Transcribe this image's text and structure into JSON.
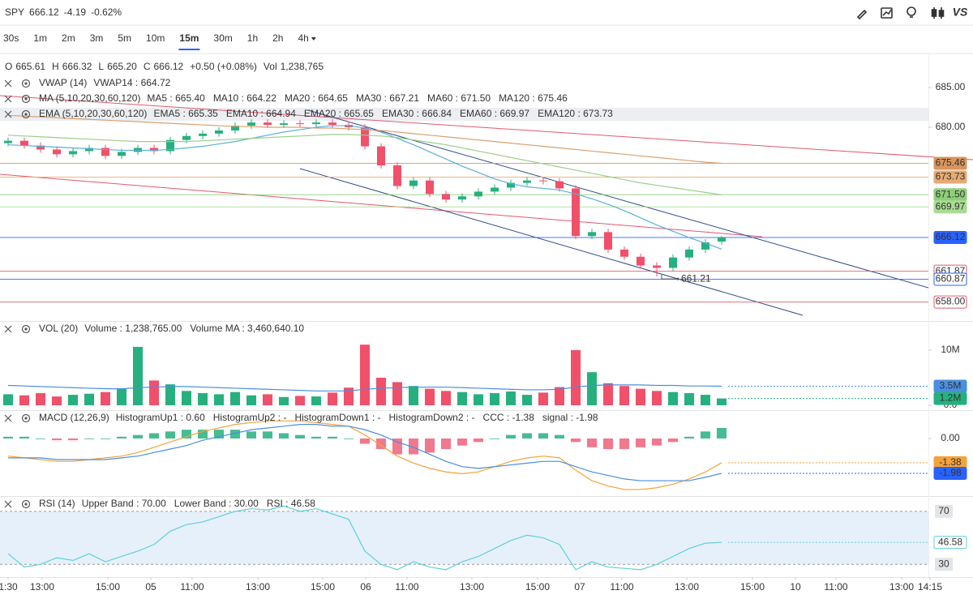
{
  "header": {
    "symbol": "SPY",
    "price": "666.12",
    "change": "-4.19",
    "change_pct": "-0.62%",
    "color": "#e04a5a",
    "vs_label": "VS"
  },
  "timeframes": [
    "30s",
    "1m",
    "2m",
    "3m",
    "5m",
    "10m",
    "15m",
    "30m",
    "1h",
    "2h",
    "4h"
  ],
  "active_timeframe": "15m",
  "ohlc": {
    "items": [
      {
        "label": "O",
        "value": "665.61",
        "color": "#e04a5a"
      },
      {
        "label": "H",
        "value": "666.32",
        "color": "#22a884"
      },
      {
        "label": "L",
        "value": "665.20",
        "color": "#e04a5a"
      },
      {
        "label": "C",
        "value": "666.12",
        "color": "#22a884"
      }
    ],
    "change": "+0.50 (+0.08%)",
    "change_color": "#22a884",
    "vol_label": "Vol",
    "vol_value": "1,238,765",
    "vol_color": "#22a884"
  },
  "chart_data": [
    {
      "type": "candlestick",
      "open": [
        678.0,
        678.3,
        677.7,
        677.2,
        676.6,
        677.0,
        677.4,
        676.4,
        676.9,
        677.4,
        677.0,
        678.4,
        678.9,
        679.2,
        679.6,
        680.2,
        680.6,
        680.3,
        680.5,
        680.4,
        680.6,
        680.3,
        680.0,
        677.6,
        675.2,
        672.6,
        673.3,
        671.6,
        670.9,
        671.3,
        671.9,
        672.4,
        673.0,
        673.3,
        673.2,
        672.3,
        666.3,
        666.8,
        664.6,
        663.7,
        662.6,
        662.3,
        663.6,
        664.6,
        665.61
      ],
      "high": [
        678.7,
        678.7,
        678.1,
        677.6,
        677.4,
        677.8,
        677.8,
        677.3,
        677.8,
        677.8,
        678.8,
        679.3,
        679.6,
        680.0,
        680.6,
        681.0,
        681.0,
        680.9,
        680.9,
        681.0,
        681.0,
        680.7,
        680.4,
        678.0,
        675.6,
        673.7,
        673.7,
        672.0,
        671.7,
        672.3,
        672.8,
        673.4,
        673.7,
        673.7,
        673.6,
        672.7,
        667.2,
        667.2,
        665.0,
        664.1,
        663.0,
        664.0,
        665.0,
        665.9,
        666.32
      ],
      "low": [
        677.6,
        677.3,
        676.8,
        676.2,
        676.2,
        676.6,
        676.0,
        676.0,
        676.5,
        676.6,
        676.6,
        678.0,
        678.5,
        678.8,
        679.2,
        679.8,
        679.9,
        679.9,
        680.0,
        680.0,
        679.9,
        679.6,
        677.2,
        674.8,
        672.2,
        672.2,
        671.2,
        670.5,
        670.5,
        670.9,
        671.5,
        672.0,
        672.6,
        672.8,
        671.9,
        665.9,
        665.9,
        664.2,
        663.3,
        662.2,
        661.21,
        661.9,
        663.2,
        664.2,
        665.2
      ],
      "close": [
        678.3,
        677.7,
        677.2,
        676.6,
        677.0,
        677.4,
        676.4,
        676.9,
        677.4,
        677.0,
        678.4,
        678.9,
        679.2,
        679.6,
        680.2,
        680.6,
        680.3,
        680.5,
        680.4,
        680.6,
        680.3,
        680.0,
        677.6,
        675.2,
        672.6,
        673.3,
        671.6,
        670.9,
        671.3,
        671.9,
        672.4,
        673.0,
        673.3,
        673.2,
        672.3,
        666.3,
        666.8,
        664.6,
        663.7,
        662.6,
        662.3,
        663.6,
        664.6,
        665.5,
        666.12
      ],
      "up_color": "#26b07e",
      "down_color": "#f0506a",
      "series": [
        {
          "color": "#5ab0d8",
          "values": [
            677.8,
            677.7,
            677.6,
            677.5,
            677.4,
            677.3,
            677.2,
            677.1,
            677.1,
            677.1,
            677.2,
            677.4,
            677.6,
            677.9,
            678.2,
            678.6,
            679.0,
            679.4,
            679.7,
            680.0,
            680.2,
            680.2,
            679.9,
            679.4,
            678.6,
            677.8,
            676.9,
            676.0,
            675.1,
            674.3,
            673.5,
            672.9,
            672.5,
            672.3,
            672.1,
            671.6,
            671.0,
            670.3,
            669.5,
            668.6,
            667.7,
            666.9,
            666.1,
            665.4,
            664.65
          ]
        },
        {
          "color": "#9ccf8a",
          "values": [
            679.0,
            678.9,
            678.8,
            678.7,
            678.6,
            678.5,
            678.4,
            678.3,
            678.2,
            678.2,
            678.2,
            678.2,
            678.3,
            678.4,
            678.5,
            678.6,
            678.7,
            678.8,
            678.9,
            679.0,
            679.1,
            679.1,
            679.0,
            678.9,
            678.7,
            678.4,
            678.1,
            677.8,
            677.4,
            677.0,
            676.6,
            676.2,
            675.8,
            675.4,
            675.0,
            674.6,
            674.2,
            673.8,
            673.4,
            673.0,
            672.7,
            672.4,
            672.1,
            671.8,
            671.5
          ]
        },
        {
          "color": "#d9a070",
          "values": [
            681.5,
            681.4,
            681.3,
            681.2,
            681.1,
            681.0,
            680.9,
            680.8,
            680.7,
            680.6,
            680.5,
            680.4,
            680.3,
            680.2,
            680.1,
            680.1,
            680.0,
            680.0,
            680.0,
            679.9,
            679.9,
            679.8,
            679.7,
            679.6,
            679.4,
            679.2,
            679.0,
            678.8,
            678.6,
            678.4,
            678.2,
            678.0,
            677.8,
            677.6,
            677.4,
            677.2,
            677.0,
            676.8,
            676.6,
            676.4,
            676.2,
            676.0,
            675.8,
            675.6,
            675.46
          ]
        }
      ],
      "ylim": [
        655.71,
        686.33
      ],
      "yticks": [
        {
          "value": 685,
          "label": "685.00"
        },
        {
          "value": 680,
          "label": "680.00"
        }
      ],
      "tag_lines": "full",
      "tags": [
        {
          "value": 675.46,
          "label": "675.46",
          "color": "#d9955e",
          "style": "filled"
        },
        {
          "value": 673.73,
          "label": "673.73",
          "color": "#e6ab72",
          "style": "filled"
        },
        {
          "value": 671.5,
          "label": "671.50",
          "color": "#8fcf7a",
          "style": "filled"
        },
        {
          "value": 669.97,
          "label": "669.97",
          "color": "#a8dc92",
          "style": "filled"
        },
        {
          "value": 666.12,
          "label": "666.12",
          "color": "#2962ff",
          "style": "filled"
        },
        {
          "value": 661.87,
          "label": "661.87",
          "color": "#e05a6a",
          "style": "outline"
        },
        {
          "value": 660.87,
          "label": "660.87",
          "color": "#2962ff",
          "style": "outline"
        },
        {
          "value": 658.0,
          "label": "658.00",
          "color": "#e05a6a",
          "style": "outline"
        }
      ],
      "annotation": "661.21",
      "legends": [
        {
          "name": "VWAP (14)",
          "items": [
            {
              "text": "VWAP14 : 664.72",
              "color": "#f0a030"
            }
          ]
        },
        {
          "name": "MA (5,10,20,30,60,120)",
          "items": [
            {
              "text": "MA5 : 665.40",
              "color": "#4a8fe0"
            },
            {
              "text": "MA10 : 664.22",
              "color": "#e0603a"
            },
            {
              "text": "MA20 : 664.65",
              "color": "#5ab0d8"
            },
            {
              "text": "MA30 : 667.21",
              "color": "#4a70d0"
            },
            {
              "text": "MA60 : 671.50",
              "color": "#8cc97a"
            },
            {
              "text": "MA120 : 675.46",
              "color": "#d9955e"
            }
          ]
        },
        {
          "name": "EMA (5,10,20,30,60,120)",
          "items": [
            {
              "text": "EMA5 : 665.35",
              "color": "#4a8fe0"
            },
            {
              "text": "EMA10 : 664.94",
              "color": "#e0603a"
            },
            {
              "text": "EMA20 : 665.65",
              "color": "#5ab0d8"
            },
            {
              "text": "EMA30 : 666.84",
              "color": "#4a70d0"
            },
            {
              "text": "EMA60 : 669.97",
              "color": "#8cc97a"
            },
            {
              "text": "EMA120 : 673.73",
              "color": "#d9955e"
            }
          ]
        }
      ]
    },
    {
      "type": "bar",
      "values": [
        2.0,
        1.8,
        2.2,
        1.6,
        1.9,
        2.1,
        2.4,
        3.0,
        10.6,
        4.5,
        3.8,
        2.6,
        2.2,
        2.0,
        2.4,
        1.8,
        2.0,
        1.5,
        1.7,
        1.6,
        2.3,
        3.2,
        11.0,
        5.0,
        4.2,
        3.5,
        3.0,
        2.6,
        2.4,
        2.0,
        2.2,
        2.5,
        1.9,
        2.3,
        3.3,
        10.0,
        6.0,
        4.0,
        3.5,
        3.0,
        2.6,
        2.4,
        2.2,
        1.9,
        1.238765
      ],
      "series": [
        {
          "color": "#4a8fe0",
          "values": [
            3.6,
            3.5,
            3.4,
            3.3,
            3.2,
            3.1,
            3.0,
            3.0,
            3.2,
            3.3,
            3.4,
            3.4,
            3.3,
            3.2,
            3.1,
            3.0,
            2.9,
            2.8,
            2.7,
            2.6,
            2.6,
            2.6,
            2.9,
            3.1,
            3.2,
            3.3,
            3.3,
            3.3,
            3.2,
            3.1,
            3.0,
            2.9,
            2.8,
            2.8,
            2.9,
            3.3,
            3.6,
            3.7,
            3.7,
            3.7,
            3.6,
            3.6,
            3.5,
            3.5,
            3.4606401
          ]
        }
      ],
      "ylim": [
        0,
        15
      ],
      "yticks": [
        {
          "value": 10,
          "label": "10M"
        },
        {
          "value": 0,
          "label": "0.0"
        }
      ],
      "tag_lines": "dotted",
      "tags": [
        {
          "value": 3.4606401,
          "label": "3.5M",
          "color": "#4a8fe0",
          "style": "filled"
        },
        {
          "value": 1.238765,
          "label": "1.2M",
          "color": "#26b07e",
          "style": "filled"
        }
      ],
      "legends": [
        {
          "name": "VOL (20)",
          "items": [
            {
              "text": "Volume : 1,238,765.00",
              "color": "#26b07e"
            },
            {
              "text": "Volume MA : 3,460,640.10",
              "color": "#4a8fe0"
            }
          ]
        }
      ]
    },
    {
      "type": "bar",
      "values": [
        0.1,
        0.1,
        0.0,
        -0.1,
        -0.1,
        0.0,
        0.0,
        0.1,
        0.2,
        0.3,
        0.4,
        0.5,
        0.5,
        0.5,
        0.5,
        0.4,
        0.4,
        0.3,
        0.2,
        0.1,
        0.1,
        0.0,
        -0.3,
        -0.6,
        -0.9,
        -0.9,
        -0.8,
        -0.6,
        -0.4,
        -0.2,
        0.0,
        0.2,
        0.3,
        0.3,
        0.2,
        -0.2,
        -0.5,
        -0.6,
        -0.6,
        -0.5,
        -0.4,
        -0.2,
        0.1,
        0.4,
        0.6
      ],
      "up_color": "#26b07e",
      "down_color": "#f0607a",
      "series": [
        {
          "color": "#f5a23a",
          "values": [
            -1.0,
            -1.1,
            -1.2,
            -1.3,
            -1.3,
            -1.2,
            -1.1,
            -1.0,
            -0.8,
            -0.5,
            -0.2,
            0.1,
            0.4,
            0.6,
            0.8,
            0.9,
            1.0,
            1.0,
            1.0,
            0.9,
            0.8,
            0.7,
            0.2,
            -0.4,
            -1.0,
            -1.4,
            -1.7,
            -1.9,
            -2.0,
            -1.9,
            -1.6,
            -1.3,
            -1.1,
            -1.0,
            -1.1,
            -1.8,
            -2.4,
            -2.7,
            -2.9,
            -2.9,
            -2.8,
            -2.6,
            -2.3,
            -1.9,
            -1.38
          ]
        },
        {
          "color": "#4a8fe0",
          "values": [
            -1.1,
            -1.1,
            -1.1,
            -1.2,
            -1.2,
            -1.2,
            -1.2,
            -1.1,
            -1.0,
            -0.8,
            -0.6,
            -0.4,
            -0.1,
            0.1,
            0.3,
            0.5,
            0.6,
            0.7,
            0.8,
            0.8,
            0.7,
            0.7,
            0.5,
            0.2,
            -0.2,
            -0.5,
            -0.9,
            -1.3,
            -1.6,
            -1.7,
            -1.6,
            -1.5,
            -1.4,
            -1.3,
            -1.3,
            -1.6,
            -1.9,
            -2.1,
            -2.3,
            -2.4,
            -2.4,
            -2.4,
            -2.4,
            -2.2,
            -1.98
          ]
        }
      ],
      "ylim": [
        -3.18,
        1.52
      ],
      "yticks": [
        {
          "value": 0,
          "label": "0.00"
        }
      ],
      "tag_lines": "dotted",
      "tags": [
        {
          "value": -1.38,
          "label": "-1.38",
          "color": "#f5a23a",
          "style": "filled"
        },
        {
          "value": -1.98,
          "label": "-1.98",
          "color": "#2962ff",
          "style": "filled"
        }
      ],
      "legends": [
        {
          "name": "MACD (12,26,9)",
          "items": [
            {
              "text": "HistogramUp1 : 0.60",
              "color": "#26b07e"
            },
            {
              "text": "HistogramUp2 : -",
              "color": "#26b07e"
            },
            {
              "text": "HistogramDown1 : -",
              "color": "#f0506a"
            },
            {
              "text": "HistogramDown2 : -",
              "color": "#f0506a"
            },
            {
              "text": "CCC : -1.38",
              "color": "#f5a23a"
            },
            {
              "text": "signal : -1.98",
              "color": "#4a8fe0"
            }
          ]
        }
      ]
    },
    {
      "type": "line",
      "series": [
        {
          "color": "#5fd0d8",
          "values": [
            38,
            28,
            30,
            35,
            33,
            38,
            32,
            36,
            40,
            45,
            55,
            60,
            62,
            66,
            70,
            72,
            71,
            74,
            70,
            72,
            68,
            64,
            40,
            30,
            26,
            32,
            28,
            26,
            32,
            36,
            42,
            48,
            52,
            50,
            45,
            26,
            32,
            28,
            27,
            26,
            30,
            36,
            42,
            46,
            46.58
          ]
        }
      ],
      "bands": [
        30,
        70
      ],
      "band_color": "#e6f0fb",
      "ylim": [
        20.4,
        80.3
      ],
      "yticks": [
        70,
        30
      ],
      "grid": true,
      "tick_boxes": true,
      "tag_lines": "dotted",
      "tags": [
        {
          "value": 46.58,
          "label": "46.58",
          "color": "#5fd0d8",
          "style": "outline"
        }
      ],
      "legends": [
        {
          "name": "RSI (14)",
          "items": [
            {
              "text": "Upper Band : 70.00",
              "color": "#888888"
            },
            {
              "text": "Lower Band : 30.00",
              "color": "#888888"
            },
            {
              "text": "RSI : 46.58",
              "color": "#5fd0d8"
            }
          ]
        }
      ],
      "xticks": [
        {
          "value": 0,
          "label": "1:30"
        },
        {
          "value": 2.1,
          "label": "13:00"
        },
        {
          "value": 6.15,
          "label": "15:00"
        },
        {
          "value": 8.8,
          "label": "05"
        },
        {
          "value": 11.35,
          "label": "11:00"
        },
        {
          "value": 15.4,
          "label": "13:00"
        },
        {
          "value": 19.4,
          "label": "15:00"
        },
        {
          "value": 22.05,
          "label": "06"
        },
        {
          "value": 24.6,
          "label": "11:00"
        },
        {
          "value": 28.6,
          "label": "13:00"
        },
        {
          "value": 32.65,
          "label": "15:00"
        },
        {
          "value": 35.25,
          "label": "07"
        },
        {
          "value": 37.85,
          "label": "11:00"
        },
        {
          "value": 41.85,
          "label": "13:00"
        },
        {
          "value": 45.9,
          "label": "15:00"
        },
        {
          "value": 48.55,
          "label": "10"
        },
        {
          "value": 51.05,
          "label": "11:00"
        },
        {
          "value": 55.1,
          "label": "13:00"
        },
        {
          "value": 56.85,
          "label": "14:15"
        }
      ]
    }
  ]
}
